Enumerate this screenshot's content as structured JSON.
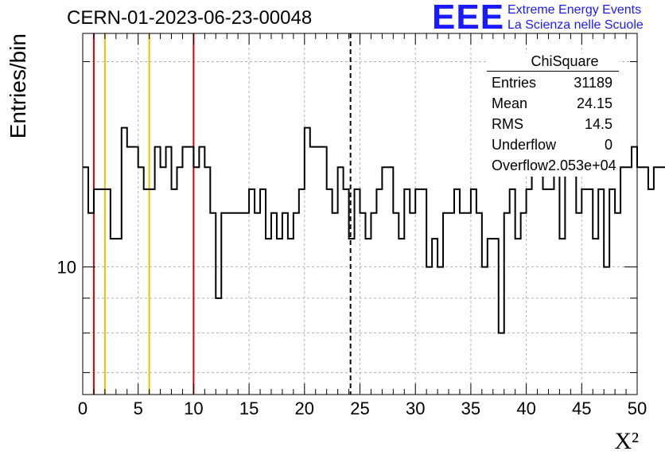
{
  "header": {
    "title": "CERN-01-2023-06-23-00048",
    "logo_mark": "EEE",
    "logo_line1": "Extreme Energy Events",
    "logo_line2": "La Scienza nelle Scuole"
  },
  "stats_box": {
    "title": "ChiSquare",
    "rows": [
      {
        "label": "Entries",
        "value": "31189"
      },
      {
        "label": "Mean",
        "value": "24.15"
      },
      {
        "label": "RMS",
        "value": "14.5"
      },
      {
        "label": "Underflow",
        "value": "0"
      },
      {
        "label": "Overflow",
        "value": "2.053e+04"
      }
    ]
  },
  "colors": {
    "histogram": "#000000",
    "red_lines": "#e00000",
    "yellow_lines": "#f0c000",
    "grid": "#b0b0b0",
    "logo": "#1a1aff"
  },
  "chart_data": {
    "type": "histogram",
    "xlabel": "X²",
    "ylabel": "Entries/bin",
    "xlim": [
      0,
      50
    ],
    "ylim": [
      6.5,
      22
    ],
    "yscale": "log",
    "x_ticks": [
      "0",
      "5",
      "10",
      "15",
      "20",
      "25",
      "30",
      "35",
      "40",
      "45",
      "50"
    ],
    "y_tick_labels": [
      {
        "value": 10,
        "label": "10"
      }
    ],
    "grid": true,
    "bin_width": 0.5,
    "values": [
      14,
      12,
      13,
      13,
      13,
      11,
      11,
      16,
      15,
      15,
      14,
      13,
      13,
      15,
      14,
      15,
      13,
      14,
      15,
      15,
      14,
      15,
      14,
      12,
      9,
      12,
      12,
      12,
      12,
      12,
      13,
      12,
      13,
      11,
      12,
      11,
      12,
      11,
      12,
      13,
      16,
      15,
      15,
      15,
      13,
      12,
      14,
      13,
      11,
      13,
      12,
      11,
      12,
      13,
      14,
      14,
      12,
      11,
      13,
      12,
      13,
      13,
      10,
      11,
      10,
      12,
      12,
      13,
      12,
      12,
      13,
      12,
      10,
      11,
      11,
      8,
      12,
      13,
      11,
      12,
      13,
      14,
      14,
      13,
      13,
      15,
      11,
      15,
      16,
      12,
      13,
      13,
      11,
      13,
      10,
      13,
      12,
      14,
      14,
      15,
      14,
      14,
      13,
      14,
      14,
      14,
      13,
      14,
      14,
      13,
      14,
      14,
      15,
      9,
      14,
      15,
      13,
      12,
      13,
      13,
      12,
      12,
      13,
      11,
      10,
      11,
      11,
      14,
      12,
      11,
      11,
      13,
      10,
      12,
      12,
      14,
      12,
      12,
      9,
      14,
      14,
      12,
      12,
      13,
      11,
      12,
      13,
      10,
      9,
      12
    ],
    "markers": [
      {
        "x": 1,
        "style": "red"
      },
      {
        "x": 2,
        "style": "yellow"
      },
      {
        "x": 6,
        "style": "yellow"
      },
      {
        "x": 10,
        "style": "red"
      },
      {
        "x": 24.15,
        "style": "dashed-black"
      }
    ]
  }
}
